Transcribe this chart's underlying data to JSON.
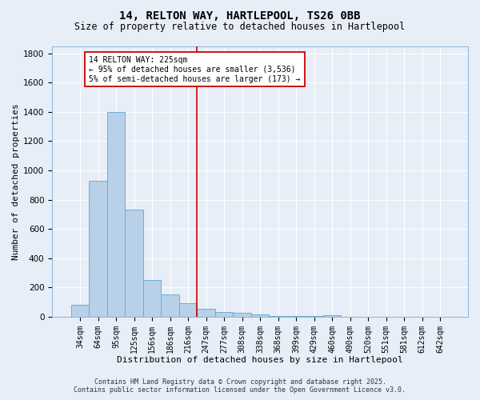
{
  "title_line1": "14, RELTON WAY, HARTLEPOOL, TS26 0BB",
  "title_line2": "Size of property relative to detached houses in Hartlepool",
  "xlabel": "Distribution of detached houses by size in Hartlepool",
  "ylabel": "Number of detached properties",
  "categories": [
    "34sqm",
    "64sqm",
    "95sqm",
    "125sqm",
    "156sqm",
    "186sqm",
    "216sqm",
    "247sqm",
    "277sqm",
    "308sqm",
    "338sqm",
    "368sqm",
    "399sqm",
    "429sqm",
    "460sqm",
    "490sqm",
    "520sqm",
    "551sqm",
    "581sqm",
    "612sqm",
    "642sqm"
  ],
  "values": [
    80,
    930,
    1400,
    730,
    250,
    150,
    90,
    55,
    30,
    25,
    15,
    5,
    5,
    5,
    10,
    0,
    0,
    0,
    0,
    0,
    0
  ],
  "bar_color": "#b8d0e8",
  "bar_edge_color": "#6aaed6",
  "background_color": "#e8eef8",
  "grid_color": "#ffffff",
  "vline_x": 6.5,
  "vline_color": "#cc0000",
  "annotation_text": "14 RELTON WAY: 225sqm\n← 95% of detached houses are smaller (3,536)\n5% of semi-detached houses are larger (173) →",
  "annotation_box_facecolor": "#ffffff",
  "annotation_border_color": "#cc0000",
  "ylim": [
    0,
    1850
  ],
  "yticks": [
    0,
    200,
    400,
    600,
    800,
    1000,
    1200,
    1400,
    1600,
    1800
  ],
  "title_fontsize": 10,
  "subtitle_fontsize": 8.5,
  "axis_label_fontsize": 8,
  "tick_fontsize": 7,
  "annotation_fontsize": 7,
  "footer_fontsize": 6,
  "footer_line1": "Contains HM Land Registry data © Crown copyright and database right 2025.",
  "footer_line2": "Contains public sector information licensed under the Open Government Licence v3.0."
}
